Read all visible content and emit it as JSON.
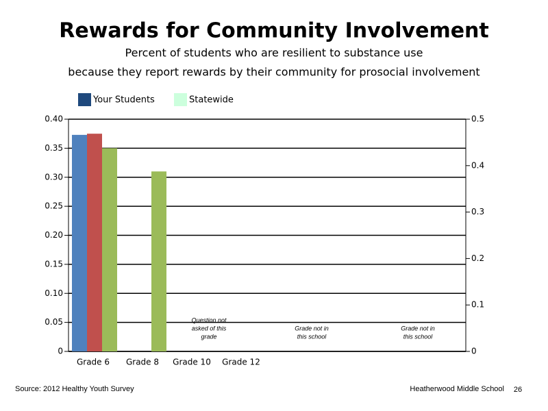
{
  "chart_data": {
    "type": "bar",
    "title": "Rewards for Community Involvement",
    "subtitle": [
      "Percent of students who are resilient to substance use",
      "because they report rewards by their community for prosocial involvement"
    ],
    "legend": [
      {
        "label": "Your Students",
        "color": "#1f497d"
      },
      {
        "label": "Statewide",
        "color": "#ccffdd"
      }
    ],
    "categories": [
      "Grade 6",
      "Grade 8",
      "Grade 10",
      "Grade 12"
    ],
    "series": [
      {
        "color": "#4f81bd",
        "values": [
          0.373,
          null,
          null,
          null
        ]
      },
      {
        "color": "#c0504d",
        "values": [
          0.375,
          null,
          null,
          null
        ]
      },
      {
        "color": "#9bbb59",
        "values": [
          0.35,
          0.31,
          null,
          null
        ]
      }
    ],
    "ylim": [
      0,
      0.4
    ],
    "yticks": [
      0,
      0.05,
      {
        "value": 0.1,
        "label": "0.10"
      },
      0.15,
      {
        "value": 0.2,
        "label": "0.20"
      },
      0.25,
      {
        "value": 0.3,
        "label": "0.30"
      },
      0.35,
      {
        "value": 0.4,
        "label": "0.40"
      }
    ],
    "y2lim": [
      0,
      0.5
    ],
    "y2ticks": [
      0,
      0.1,
      0.2,
      0.3,
      0.4,
      0.5
    ],
    "grid": true,
    "annotations": [
      {
        "lines": [
          "Question not",
          "asked of this",
          "grade"
        ]
      },
      {
        "lines": [
          "Grade not in",
          "this school"
        ]
      },
      {
        "lines": [
          "Grade not in",
          "this school"
        ]
      }
    ],
    "source": "Source: 2012 Healthy Youth Survey",
    "school": "Heatherwood Middle School",
    "page_number": "26"
  }
}
